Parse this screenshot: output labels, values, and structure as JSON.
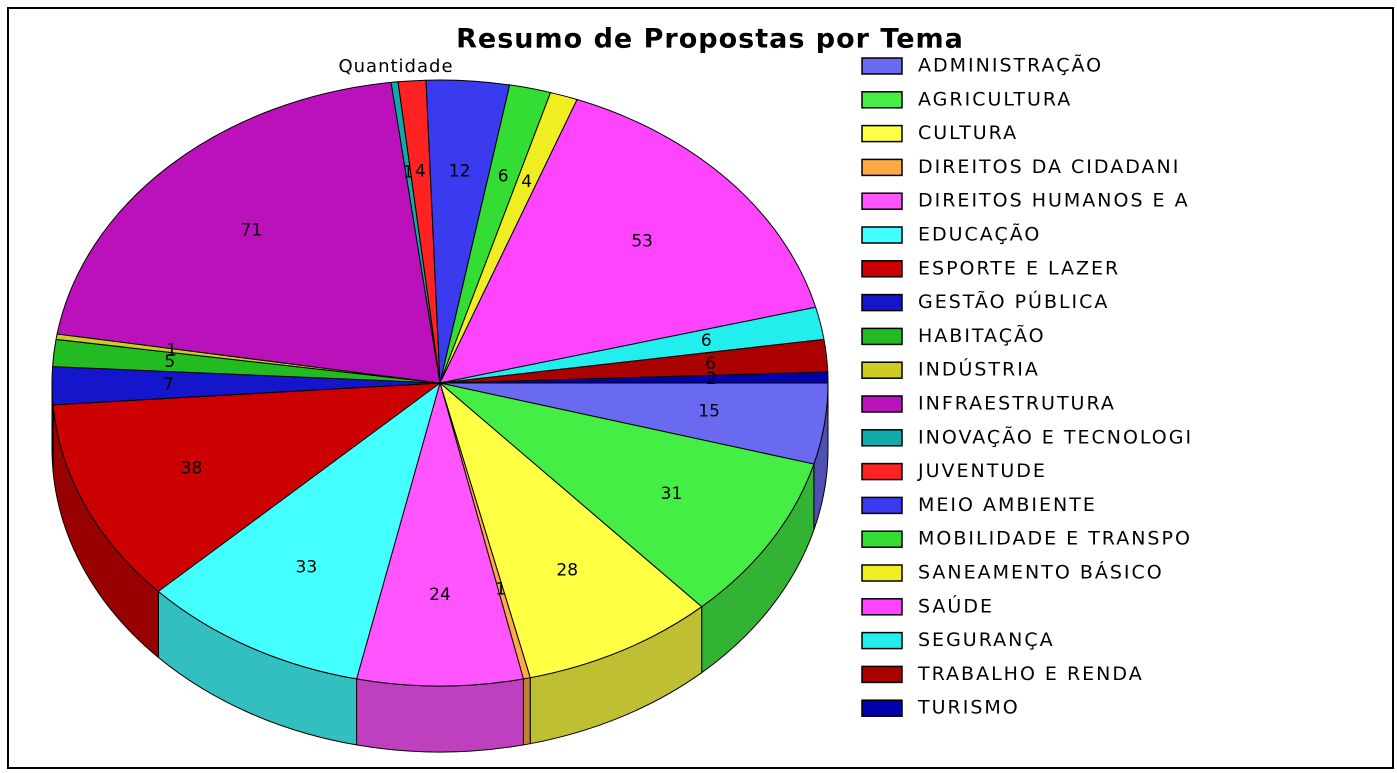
{
  "chart_data": {
    "type": "pie3d",
    "title": "Resumo de Propostas por Tema",
    "subtitle": "Quantidade",
    "categories": [
      "ADMINISTRAÇÃO",
      "AGRICULTURA",
      "CULTURA",
      "DIREITOS DA CIDADANI",
      "DIREITOS HUMANOS E A",
      "EDUCAÇÃO",
      "ESPORTE E LAZER",
      "GESTÃO PÚBLICA",
      "HABITAÇÃO",
      "INDÚSTRIA",
      "INFRAESTRUTURA",
      "INOVAÇÃO E TECNOLOGI",
      "JUVENTUDE",
      "MEIO AMBIENTE",
      "MOBILIDADE E TRANSPO",
      "SANEAMENTO BÁSICO",
      "SAÚDE",
      "SEGURANÇA",
      "TRABALHO E RENDA",
      "TURISMO"
    ],
    "values": [
      15,
      31,
      28,
      1,
      24,
      33,
      38,
      7,
      5,
      1,
      71,
      1,
      4,
      12,
      6,
      4,
      53,
      6,
      6,
      2
    ],
    "colors": [
      "#6a6af0",
      "#44ee44",
      "#ffff44",
      "#ffaa44",
      "#ff55ff",
      "#44ffff",
      "#cc0000",
      "#1515cc",
      "#22bb22",
      "#cccc22",
      "#bb11bb",
      "#11aaaa",
      "#ff2222",
      "#3a3aee",
      "#33dd33",
      "#eeee22",
      "#ff44ff",
      "#22eeee",
      "#aa0000",
      "#0000aa"
    ],
    "legend": "right"
  }
}
